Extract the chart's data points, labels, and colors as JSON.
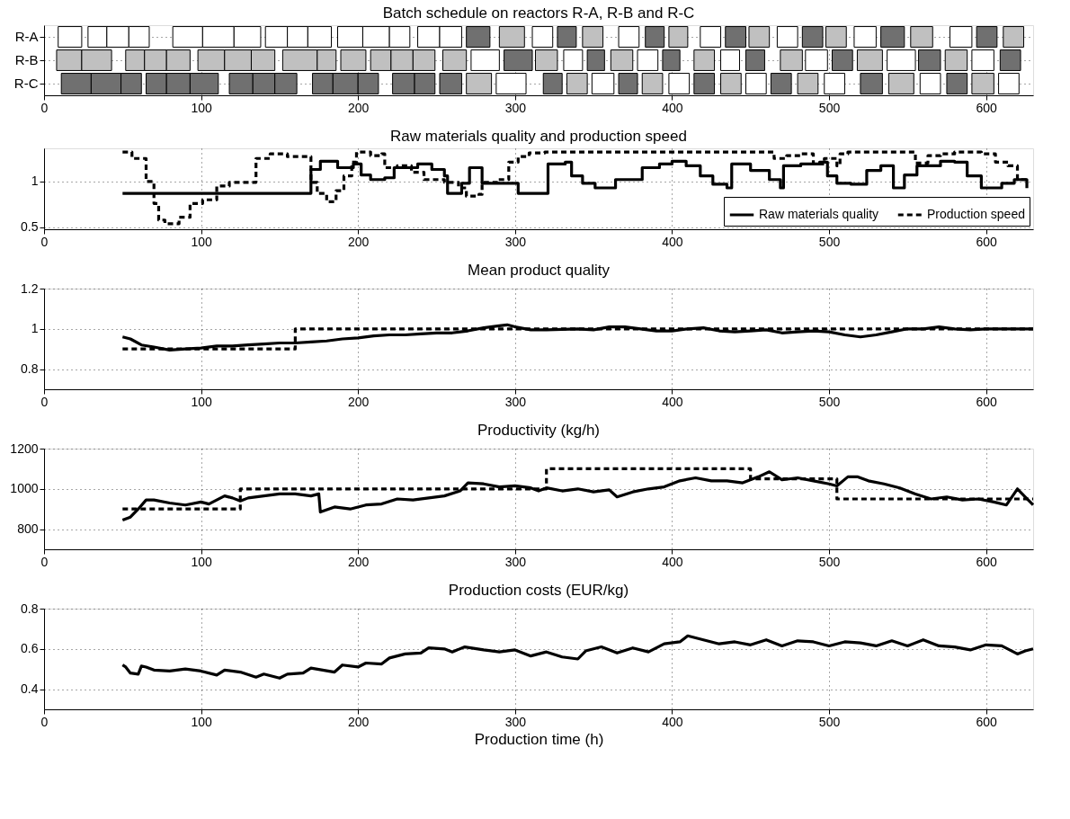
{
  "chart_data": [
    {
      "type": "bar",
      "orientation": "horizontal",
      "title": "Batch schedule on reactors R-A, R-B and R-C",
      "categories": [
        "R-A",
        "R-B",
        "R-C"
      ],
      "xlim": [
        0,
        630
      ],
      "xticks": [
        0,
        100,
        200,
        300,
        400,
        500,
        600
      ],
      "grid": true,
      "series": [
        {
          "base": [
            9,
            8,
            11
          ],
          "values": [
            15,
            16,
            19
          ],
          "colors": [
            "#ffffff",
            "#c0c0c0",
            "#707070"
          ]
        },
        {
          "base": [
            28,
            24,
            30
          ],
          "values": [
            12,
            19,
            19
          ],
          "colors": [
            "#ffffff",
            "#c0c0c0",
            "#707070"
          ]
        },
        {
          "base": [
            40,
            52,
            49
          ],
          "values": [
            14,
            12,
            13
          ],
          "colors": [
            "#ffffff",
            "#c0c0c0",
            "#707070"
          ]
        },
        {
          "base": [
            54,
            64,
            65
          ],
          "values": [
            13,
            14,
            13
          ],
          "colors": [
            "#ffffff",
            "#c0c0c0",
            "#707070"
          ]
        },
        {
          "base": [
            82,
            78,
            78
          ],
          "values": [
            19,
            15,
            15
          ],
          "colors": [
            "#ffffff",
            "#c0c0c0",
            "#707070"
          ]
        },
        {
          "base": [
            101,
            98,
            93
          ],
          "values": [
            20,
            17,
            18
          ],
          "colors": [
            "#ffffff",
            "#c0c0c0",
            "#707070"
          ]
        },
        {
          "base": [
            121,
            115,
            118
          ],
          "values": [
            17,
            17,
            15
          ],
          "colors": [
            "#ffffff",
            "#c0c0c0",
            "#707070"
          ]
        },
        {
          "base": [
            141,
            132,
            133
          ],
          "values": [
            14,
            15,
            14
          ],
          "colors": [
            "#ffffff",
            "#c0c0c0",
            "#707070"
          ]
        },
        {
          "base": [
            155,
            152,
            147
          ],
          "values": [
            13,
            22,
            14
          ],
          "colors": [
            "#ffffff",
            "#c0c0c0",
            "#707070"
          ]
        },
        {
          "base": [
            168,
            174,
            171
          ],
          "values": [
            15,
            12,
            13
          ],
          "colors": [
            "#ffffff",
            "#c0c0c0",
            "#707070"
          ]
        },
        {
          "base": [
            187,
            189,
            184
          ],
          "values": [
            16,
            16,
            16
          ],
          "colors": [
            "#ffffff",
            "#c0c0c0",
            "#707070"
          ]
        },
        {
          "base": [
            203,
            208,
            200
          ],
          "values": [
            17,
            13,
            13
          ],
          "colors": [
            "#ffffff",
            "#c0c0c0",
            "#707070"
          ]
        },
        {
          "base": [
            220,
            221,
            222
          ],
          "values": [
            13,
            14,
            14
          ],
          "colors": [
            "#ffffff",
            "#c0c0c0",
            "#707070"
          ]
        },
        {
          "base": [
            238,
            235,
            236
          ],
          "values": [
            14,
            14,
            13
          ],
          "colors": [
            "#ffffff",
            "#c0c0c0",
            "#707070"
          ]
        },
        {
          "base": [
            252,
            254,
            252
          ],
          "values": [
            14,
            15,
            14
          ],
          "colors": [
            "#ffffff",
            "#c0c0c0",
            "#707070"
          ]
        },
        {
          "base": [
            269,
            272,
            269
          ],
          "values": [
            15,
            18,
            16
          ],
          "colors": [
            "#707070",
            "#ffffff",
            "#c0c0c0"
          ]
        },
        {
          "base": [
            290,
            293,
            288
          ],
          "values": [
            16,
            18,
            19
          ],
          "colors": [
            "#c0c0c0",
            "#707070",
            "#ffffff"
          ]
        },
        {
          "base": [
            311,
            313,
            318
          ],
          "values": [
            13,
            14,
            12
          ],
          "colors": [
            "#ffffff",
            "#c0c0c0",
            "#707070"
          ]
        },
        {
          "base": [
            327,
            331,
            333
          ],
          "values": [
            12,
            12,
            13
          ],
          "colors": [
            "#707070",
            "#ffffff",
            "#c0c0c0"
          ]
        },
        {
          "base": [
            343,
            346,
            349
          ],
          "values": [
            13,
            11,
            14
          ],
          "colors": [
            "#c0c0c0",
            "#707070",
            "#ffffff"
          ]
        },
        {
          "base": [
            366,
            361,
            366
          ],
          "values": [
            13,
            14,
            12
          ],
          "colors": [
            "#ffffff",
            "#c0c0c0",
            "#707070"
          ]
        },
        {
          "base": [
            383,
            378,
            381
          ],
          "values": [
            12,
            13,
            13
          ],
          "colors": [
            "#707070",
            "#ffffff",
            "#c0c0c0"
          ]
        },
        {
          "base": [
            398,
            394,
            398
          ],
          "values": [
            12,
            11,
            13
          ],
          "colors": [
            "#c0c0c0",
            "#707070",
            "#ffffff"
          ]
        },
        {
          "base": [
            418,
            414,
            414
          ],
          "values": [
            13,
            13,
            13
          ],
          "colors": [
            "#ffffff",
            "#c0c0c0",
            "#707070"
          ]
        },
        {
          "base": [
            434,
            431,
            431
          ],
          "values": [
            13,
            12,
            13
          ],
          "colors": [
            "#707070",
            "#ffffff",
            "#c0c0c0"
          ]
        },
        {
          "base": [
            449,
            447,
            447
          ],
          "values": [
            13,
            12,
            13
          ],
          "colors": [
            "#c0c0c0",
            "#707070",
            "#ffffff"
          ]
        },
        {
          "base": [
            467,
            469,
            463
          ],
          "values": [
            13,
            14,
            13
          ],
          "colors": [
            "#ffffff",
            "#c0c0c0",
            "#707070"
          ]
        },
        {
          "base": [
            483,
            485,
            480
          ],
          "values": [
            13,
            14,
            13
          ],
          "colors": [
            "#707070",
            "#ffffff",
            "#c0c0c0"
          ]
        },
        {
          "base": [
            498,
            502,
            497
          ],
          "values": [
            13,
            13,
            13
          ],
          "colors": [
            "#c0c0c0",
            "#707070",
            "#ffffff"
          ]
        },
        {
          "base": [
            516,
            518,
            520
          ],
          "values": [
            14,
            16,
            14
          ],
          "colors": [
            "#ffffff",
            "#c0c0c0",
            "#707070"
          ]
        },
        {
          "base": [
            533,
            537,
            538
          ],
          "values": [
            15,
            18,
            16
          ],
          "colors": [
            "#707070",
            "#ffffff",
            "#c0c0c0"
          ]
        },
        {
          "base": [
            552,
            557,
            558
          ],
          "values": [
            14,
            14,
            13
          ],
          "colors": [
            "#c0c0c0",
            "#707070",
            "#ffffff"
          ]
        },
        {
          "base": [
            577,
            574,
            575
          ],
          "values": [
            14,
            14,
            13
          ],
          "colors": [
            "#ffffff",
            "#c0c0c0",
            "#707070"
          ]
        },
        {
          "base": [
            594,
            591,
            591
          ],
          "values": [
            13,
            14,
            14
          ],
          "colors": [
            "#707070",
            "#ffffff",
            "#c0c0c0"
          ]
        },
        {
          "base": [
            611,
            609,
            608
          ],
          "values": [
            13,
            13,
            13
          ],
          "colors": [
            "#c0c0c0",
            "#707070",
            "#ffffff"
          ]
        }
      ]
    },
    {
      "type": "step",
      "title": "Raw materials quality and production speed",
      "xlim": [
        0,
        630
      ],
      "xticks": [
        0,
        100,
        200,
        300,
        400,
        500,
        600
      ],
      "ylim": [
        0.48,
        1.36
      ],
      "yticks": [
        0.5,
        1
      ],
      "grid": true,
      "legend": "bottom right",
      "series": [
        {
          "name": "Raw materials quality",
          "color": "#000000",
          "line_style": "solid",
          "x": [
            50,
            170,
            176,
            187,
            197,
            202,
            208,
            217,
            223,
            238,
            247,
            255,
            257,
            266,
            268,
            271,
            279,
            281,
            294,
            302,
            319,
            321,
            332,
            336,
            343,
            351,
            364,
            368,
            381,
            392,
            400,
            409,
            418,
            426,
            435,
            438,
            450,
            454,
            462,
            469,
            471,
            482,
            494,
            499,
            505,
            514,
            524,
            533,
            541,
            546,
            548,
            556,
            571,
            580,
            588,
            597,
            610,
            618,
            626
          ],
          "values": [
            0.87,
            1.13,
            1.22,
            1.15,
            1.19,
            1.07,
            1.02,
            1.04,
            1.15,
            1.19,
            1.13,
            1.06,
            0.87,
            0.98,
            0.98,
            1.15,
            0.98,
            0.98,
            0.98,
            0.87,
            0.87,
            1.19,
            1.21,
            1.06,
            0.98,
            0.93,
            1.02,
            1.02,
            1.15,
            1.19,
            1.22,
            1.17,
            1.06,
            0.97,
            0.93,
            1.19,
            1.12,
            1.12,
            1.02,
            0.93,
            1.17,
            1.19,
            1.21,
            1.06,
            0.98,
            0.97,
            1.12,
            1.17,
            0.93,
            0.93,
            1.07,
            1.17,
            1.22,
            1.21,
            1.06,
            0.93,
            0.98,
            1.02,
            0.98
          ]
        },
        {
          "name": "Production speed",
          "color": "#000000",
          "line_style": "dashed",
          "x": [
            50,
            56,
            65,
            70,
            73,
            77,
            86,
            93,
            101,
            110,
            118,
            135,
            144,
            155,
            170,
            174,
            180,
            186,
            191,
            196,
            199,
            208,
            215,
            217,
            225,
            234,
            242,
            255,
            264,
            269,
            277,
            279,
            289,
            296,
            302,
            309,
            319,
            460,
            465,
            473,
            482,
            490,
            497,
            505,
            507,
            512,
            550,
            555,
            563,
            571,
            580,
            597,
            606,
            614,
            620,
            626
          ],
          "values": [
            1.32,
            1.25,
            1.0,
            0.76,
            0.58,
            0.54,
            0.61,
            0.76,
            0.8,
            0.95,
            0.99,
            1.25,
            1.3,
            1.27,
            0.99,
            0.87,
            0.78,
            0.9,
            1.06,
            1.21,
            1.32,
            1.28,
            1.3,
            1.15,
            1.17,
            1.1,
            1.02,
            0.99,
            0.93,
            0.84,
            0.86,
            0.99,
            1.02,
            1.21,
            1.27,
            1.31,
            1.32,
            1.32,
            1.25,
            1.28,
            1.3,
            1.19,
            1.25,
            1.17,
            1.3,
            1.32,
            1.32,
            1.2,
            1.28,
            1.3,
            1.32,
            1.3,
            1.21,
            1.17,
            1.02,
            0.91
          ]
        }
      ]
    },
    {
      "type": "line",
      "title": "Mean product quality",
      "xlim": [
        0,
        630
      ],
      "xticks": [
        0,
        100,
        200,
        300,
        400,
        500,
        600
      ],
      "ylim": [
        0.7,
        1.2
      ],
      "yticks": [
        0.8,
        1,
        1.2
      ],
      "grid": true,
      "series": [
        {
          "color": "#000000",
          "line_style": "solid",
          "x": [
            50,
            55,
            62,
            70,
            80,
            90,
            100,
            110,
            120,
            130,
            140,
            150,
            160,
            170,
            180,
            190,
            200,
            210,
            220,
            230,
            240,
            250,
            260,
            270,
            280,
            290,
            295,
            300,
            310,
            320,
            340,
            350,
            360,
            370,
            380,
            390,
            400,
            410,
            420,
            430,
            440,
            450,
            460,
            470,
            480,
            490,
            500,
            510,
            520,
            530,
            540,
            550,
            560,
            570,
            580,
            590,
            600,
            610,
            630
          ],
          "values": [
            0.96,
            0.95,
            0.92,
            0.91,
            0.895,
            0.9,
            0.905,
            0.915,
            0.915,
            0.92,
            0.925,
            0.93,
            0.93,
            0.935,
            0.94,
            0.95,
            0.955,
            0.965,
            0.97,
            0.97,
            0.975,
            0.98,
            0.98,
            0.99,
            1.005,
            1.015,
            1.02,
            1.01,
            0.995,
            0.995,
            1.0,
            0.995,
            1.01,
            1.01,
            1.0,
            0.99,
            0.99,
            1.0,
            1.005,
            0.99,
            0.985,
            0.99,
            0.995,
            0.98,
            0.985,
            0.99,
            0.985,
            0.97,
            0.96,
            0.97,
            0.985,
            1.0,
            1.0,
            1.01,
            1.0,
            0.995,
            1.0,
            1.0,
            1.0
          ]
        },
        {
          "type": "step",
          "color": "#000000",
          "line_style": "dashed",
          "x": [
            50,
            160,
            630
          ],
          "values": [
            0.9,
            1.0,
            1.0
          ]
        }
      ]
    },
    {
      "type": "line",
      "title": "Productivity (kg/h)",
      "xlim": [
        0,
        630
      ],
      "xticks": [
        0,
        100,
        200,
        300,
        400,
        500,
        600
      ],
      "ylim": [
        700,
        1200
      ],
      "yticks": [
        800,
        1000,
        1200
      ],
      "grid": true,
      "series": [
        {
          "color": "#000000",
          "line_style": "solid",
          "x": [
            50,
            55,
            60,
            65,
            70,
            80,
            90,
            100,
            105,
            110,
            115,
            120,
            125,
            130,
            140,
            150,
            160,
            170,
            175,
            176,
            185,
            195,
            205,
            215,
            225,
            235,
            245,
            255,
            265,
            270,
            280,
            290,
            300,
            310,
            315,
            320,
            330,
            340,
            350,
            360,
            365,
            375,
            385,
            395,
            405,
            415,
            425,
            435,
            445,
            455,
            462,
            470,
            480,
            490,
            500,
            505,
            512,
            518,
            525,
            535,
            545,
            555,
            565,
            575,
            585,
            595,
            605,
            613,
            620,
            625,
            630
          ],
          "values": [
            845,
            860,
            900,
            945,
            945,
            930,
            920,
            935,
            925,
            945,
            965,
            955,
            940,
            955,
            965,
            975,
            975,
            965,
            975,
            885,
            910,
            900,
            920,
            925,
            950,
            945,
            955,
            965,
            990,
            1030,
            1025,
            1010,
            1015,
            1005,
            990,
            1005,
            990,
            1000,
            985,
            995,
            960,
            985,
            1000,
            1010,
            1040,
            1055,
            1040,
            1040,
            1030,
            1060,
            1085,
            1045,
            1055,
            1040,
            1025,
            1015,
            1060,
            1060,
            1040,
            1025,
            1005,
            975,
            950,
            960,
            945,
            950,
            935,
            920,
            1000,
            960,
            920
          ]
        },
        {
          "type": "step",
          "color": "#000000",
          "line_style": "dashed",
          "x": [
            50,
            125,
            320,
            450,
            505,
            630
          ],
          "values": [
            900,
            1000,
            1100,
            1050,
            950,
            950
          ]
        }
      ]
    },
    {
      "type": "line",
      "title": "Production costs (EUR/kg)",
      "xlabel": "Production time (h)",
      "xlim": [
        0,
        630
      ],
      "xticks": [
        0,
        100,
        200,
        300,
        400,
        500,
        600
      ],
      "ylim": [
        0.3,
        0.8
      ],
      "yticks": [
        0.4,
        0.6,
        0.8
      ],
      "grid": true,
      "series": [
        {
          "color": "#000000",
          "line_style": "solid",
          "x": [
            50,
            52,
            55,
            60,
            62,
            65,
            70,
            80,
            90,
            100,
            110,
            115,
            125,
            135,
            140,
            150,
            155,
            165,
            170,
            185,
            190,
            200,
            205,
            215,
            220,
            230,
            240,
            245,
            255,
            260,
            268,
            280,
            290,
            300,
            310,
            320,
            330,
            340,
            345,
            355,
            365,
            375,
            385,
            395,
            405,
            410,
            420,
            430,
            440,
            450,
            460,
            470,
            480,
            490,
            500,
            510,
            520,
            530,
            540,
            550,
            560,
            570,
            580,
            590,
            600,
            610,
            620,
            625,
            630
          ],
          "values": [
            0.52,
            0.51,
            0.48,
            0.475,
            0.515,
            0.51,
            0.495,
            0.49,
            0.5,
            0.49,
            0.47,
            0.495,
            0.485,
            0.46,
            0.475,
            0.455,
            0.475,
            0.48,
            0.505,
            0.485,
            0.52,
            0.51,
            0.53,
            0.525,
            0.555,
            0.575,
            0.58,
            0.605,
            0.6,
            0.585,
            0.61,
            0.595,
            0.585,
            0.595,
            0.565,
            0.585,
            0.56,
            0.55,
            0.59,
            0.61,
            0.58,
            0.605,
            0.585,
            0.625,
            0.635,
            0.665,
            0.645,
            0.625,
            0.635,
            0.62,
            0.645,
            0.615,
            0.64,
            0.635,
            0.615,
            0.635,
            0.63,
            0.615,
            0.64,
            0.615,
            0.645,
            0.615,
            0.61,
            0.595,
            0.62,
            0.615,
            0.575,
            0.59,
            0.6
          ]
        }
      ]
    }
  ]
}
